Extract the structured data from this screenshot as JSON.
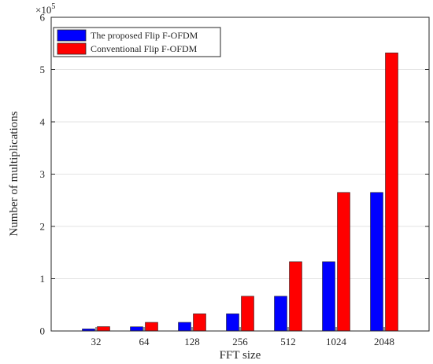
{
  "chart_data": {
    "type": "bar",
    "xlabel": "FFT size",
    "ylabel": "Number of multiplications",
    "exponent": "×10",
    "exponent_power": "5",
    "categories": [
      "32",
      "64",
      "128",
      "256",
      "512",
      "1024",
      "2048"
    ],
    "ylim": [
      0,
      6
    ],
    "yticks": [
      "0",
      "1",
      "2",
      "3",
      "4",
      "5",
      "6"
    ],
    "grid": "horizontal",
    "legend_placement": "top-left",
    "series": [
      {
        "name": "The proposed Flip F-OFDM",
        "color": "#0000ff",
        "values": [
          0.04,
          0.08,
          0.165,
          0.33,
          0.665,
          1.325,
          2.65
        ]
      },
      {
        "name": "Conventional Flip F-OFDM",
        "color": "#ff0000",
        "values": [
          0.083,
          0.165,
          0.33,
          0.665,
          1.325,
          2.65,
          5.32
        ]
      }
    ]
  }
}
